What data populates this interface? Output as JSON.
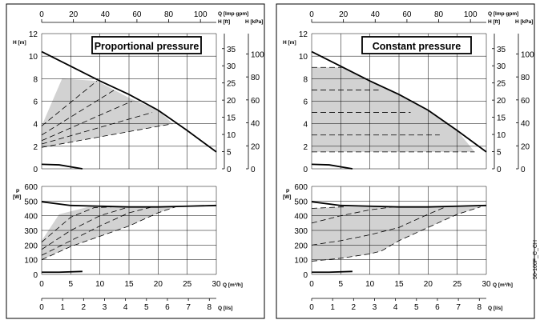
{
  "side_label": "50-100F_C_CH",
  "chart_data": [
    {
      "type": "line",
      "title": "Proportional pressure",
      "axes": {
        "q_imp_gpm_label": "Q [Imp gpm]",
        "q_imp_gpm_ticks": [
          "0",
          "20",
          "40",
          "60",
          "80",
          "100"
        ],
        "h_m_label": "H [m]",
        "h_m_ticks": [
          "0",
          "2",
          "4",
          "6",
          "8",
          "10",
          "12"
        ],
        "h_ft_label": "H [ft]",
        "h_ft_ticks": [
          "0",
          "5",
          "10",
          "15",
          "20",
          "25",
          "30",
          "35"
        ],
        "h_kpa_label": "H [kPa]",
        "h_kpa_ticks": [
          "0",
          "20",
          "40",
          "60",
          "80",
          "100"
        ],
        "p_label": "P\n[W]",
        "p_ticks": [
          "0",
          "100",
          "200",
          "300",
          "400",
          "500",
          "600"
        ],
        "q_m3h_label": "Q [m³/h]",
        "q_m3h_ticks": [
          "0",
          "5",
          "10",
          "15",
          "20",
          "25",
          "30"
        ],
        "q_ls_label": "Q [l/s]",
        "q_ls_ticks": [
          "0",
          "1",
          "2",
          "3",
          "4",
          "5",
          "6",
          "7",
          "8"
        ]
      },
      "xlim": [
        0,
        30
      ],
      "ylim_head": [
        0,
        12
      ],
      "ylim_power": [
        0,
        600
      ],
      "head_series": [
        {
          "style": "max",
          "x": [
            0,
            5,
            10,
            15,
            20,
            25,
            30
          ],
          "y": [
            10.4,
            9.1,
            7.8,
            6.6,
            5.2,
            3.4,
            1.5
          ]
        },
        {
          "style": "min",
          "x": [
            0,
            3,
            7
          ],
          "y": [
            0.4,
            0.35,
            0.0
          ]
        },
        {
          "style": "dashed",
          "x": [
            0,
            9.5
          ],
          "y": [
            3.8,
            7.8
          ]
        },
        {
          "style": "dashed",
          "x": [
            0,
            12.5
          ],
          "y": [
            3.0,
            7.0
          ]
        },
        {
          "style": "dashed",
          "x": [
            0,
            15.5
          ],
          "y": [
            2.5,
            6.0
          ]
        },
        {
          "style": "dashed",
          "x": [
            0,
            19
          ],
          "y": [
            2.2,
            5.0
          ]
        },
        {
          "style": "dashed",
          "x": [
            0,
            22.5
          ],
          "y": [
            1.9,
            4.0
          ]
        }
      ],
      "head_region": {
        "x": [
          0,
          3.5,
          9.5,
          15,
          20,
          22.5,
          0
        ],
        "y": [
          3.8,
          8.0,
          7.8,
          6.3,
          5.2,
          4.0,
          1.9
        ]
      },
      "power_series": [
        {
          "style": "max",
          "x": [
            0,
            5,
            10,
            15,
            20,
            25,
            30
          ],
          "y": [
            495,
            470,
            465,
            460,
            460,
            465,
            470
          ]
        },
        {
          "style": "min",
          "x": [
            0,
            3,
            7
          ],
          "y": [
            15,
            15,
            20
          ]
        },
        {
          "style": "dashed",
          "x": [
            0,
            5,
            9,
            12
          ],
          "y": [
            220,
            390,
            455,
            460
          ]
        },
        {
          "style": "dashed",
          "x": [
            0,
            5,
            10,
            15
          ],
          "y": [
            170,
            300,
            400,
            460
          ]
        },
        {
          "style": "dashed",
          "x": [
            0,
            5,
            10,
            15,
            19
          ],
          "y": [
            130,
            230,
            330,
            420,
            460
          ]
        },
        {
          "style": "dashed",
          "x": [
            0,
            5,
            10,
            15,
            20,
            23
          ],
          "y": [
            100,
            190,
            260,
            330,
            420,
            460
          ]
        }
      ],
      "power_region": {
        "x": [
          0,
          3,
          8,
          12,
          23,
          20,
          15,
          10,
          5,
          0
        ],
        "y": [
          230,
          410,
          460,
          460,
          460,
          420,
          330,
          260,
          190,
          100
        ]
      }
    },
    {
      "type": "line",
      "title": "Constant pressure",
      "axes": {
        "q_imp_gpm_label": "Q [Imp gpm]",
        "q_imp_gpm_ticks": [
          "0",
          "20",
          "40",
          "60",
          "80",
          "100"
        ],
        "h_m_label": "H [m]",
        "h_m_ticks": [
          "0",
          "2",
          "4",
          "6",
          "8",
          "10",
          "12"
        ],
        "h_ft_label": "H [ft]",
        "h_ft_ticks": [
          "0",
          "5",
          "10",
          "15",
          "20",
          "25",
          "30",
          "35"
        ],
        "h_kpa_label": "H [kPa]",
        "h_kpa_ticks": [
          "0",
          "20",
          "40",
          "60",
          "80",
          "100"
        ],
        "p_label": "P\n[W]",
        "p_ticks": [
          "0",
          "100",
          "200",
          "300",
          "400",
          "500",
          "600"
        ],
        "q_m3h_label": "Q [m³/h]",
        "q_m3h_ticks": [
          "0",
          "5",
          "10",
          "15",
          "20",
          "25",
          "30"
        ],
        "q_ls_label": "Q [l/s]",
        "q_ls_ticks": [
          "0",
          "1",
          "2",
          "3",
          "4",
          "5",
          "6",
          "7",
          "8"
        ]
      },
      "xlim": [
        0,
        30
      ],
      "ylim_head": [
        0,
        12
      ],
      "ylim_power": [
        0,
        600
      ],
      "head_series": [
        {
          "style": "max",
          "x": [
            0,
            5,
            10,
            15,
            20,
            25,
            30
          ],
          "y": [
            10.4,
            9.1,
            7.8,
            6.6,
            5.2,
            3.4,
            1.5
          ]
        },
        {
          "style": "min",
          "x": [
            0,
            3,
            7
          ],
          "y": [
            0.4,
            0.35,
            0.0
          ]
        },
        {
          "style": "dashed",
          "x": [
            0,
            5.5
          ],
          "y": [
            9.0,
            9.0
          ]
        },
        {
          "style": "dashed",
          "x": [
            0,
            11.5
          ],
          "y": [
            7.0,
            7.0
          ]
        },
        {
          "style": "dashed",
          "x": [
            0,
            17
          ],
          "y": [
            5.0,
            5.0
          ]
        },
        {
          "style": "dashed",
          "x": [
            0,
            22
          ],
          "y": [
            3.0,
            3.0
          ]
        },
        {
          "style": "dashed",
          "x": [
            0,
            28
          ],
          "y": [
            1.5,
            1.5
          ]
        }
      ],
      "head_region": {
        "x": [
          0,
          5.5,
          10,
          15,
          20,
          25,
          28,
          0
        ],
        "y": [
          9.0,
          9.0,
          7.8,
          6.6,
          5.2,
          3.4,
          1.5,
          1.5
        ]
      },
      "power_series": [
        {
          "style": "max",
          "x": [
            0,
            5,
            10,
            15,
            20,
            25,
            30
          ],
          "y": [
            495,
            470,
            465,
            460,
            460,
            465,
            470
          ]
        },
        {
          "style": "min",
          "x": [
            0,
            3,
            7
          ],
          "y": [
            15,
            15,
            20
          ]
        },
        {
          "style": "dashed",
          "x": [
            0,
            5,
            6
          ],
          "y": [
            450,
            460,
            460
          ]
        },
        {
          "style": "dashed",
          "x": [
            0,
            5,
            10,
            14
          ],
          "y": [
            350,
            400,
            440,
            460
          ]
        },
        {
          "style": "dashed",
          "x": [
            0,
            5,
            10,
            15,
            20,
            23
          ],
          "y": [
            200,
            230,
            270,
            320,
            410,
            460
          ]
        },
        {
          "style": "dashed",
          "x": [
            0,
            5,
            10,
            12,
            15,
            20,
            25,
            29
          ],
          "y": [
            90,
            110,
            140,
            160,
            230,
            320,
            410,
            460
          ]
        }
      ],
      "power_region": {
        "x": [
          0,
          5,
          29,
          25,
          20,
          15,
          12,
          10,
          5,
          0
        ],
        "y": [
          450,
          460,
          460,
          410,
          320,
          230,
          160,
          140,
          110,
          90
        ]
      }
    }
  ]
}
